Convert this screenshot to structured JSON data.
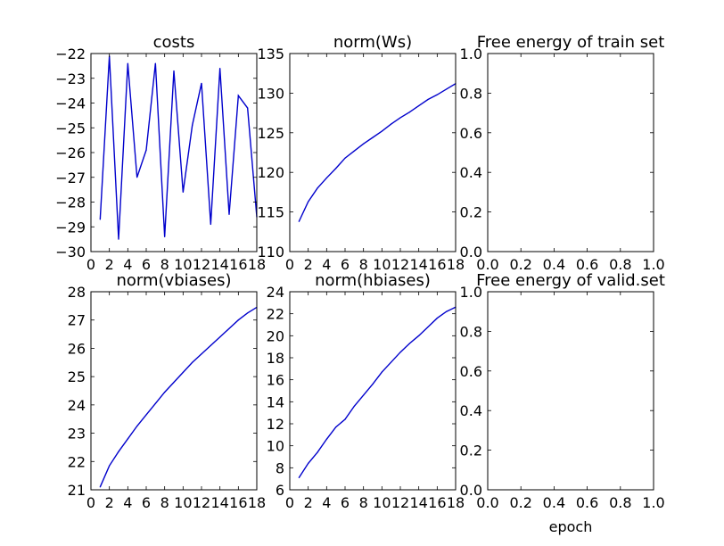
{
  "figure": {
    "xlabel": "epoch"
  },
  "chart_data": [
    {
      "type": "line",
      "title": "costs",
      "xlabel": "",
      "ylabel": "",
      "xlim": [
        0,
        18
      ],
      "ylim": [
        -30,
        -22
      ],
      "xticks": [
        0,
        2,
        4,
        6,
        8,
        10,
        12,
        14,
        16,
        18
      ],
      "xtick_labels": [
        "0",
        "2",
        "4",
        "6",
        "8",
        "10",
        "12",
        "14",
        "16",
        "18"
      ],
      "yticks": [
        -30,
        -29,
        -28,
        -27,
        -26,
        -25,
        -24,
        -23,
        -22
      ],
      "ytick_labels": [
        "−30",
        "−29",
        "−28",
        "−27",
        "−26",
        "−25",
        "−24",
        "−23",
        "−22"
      ],
      "series": [
        {
          "name": "costs",
          "color": "#0000cc",
          "x": [
            1,
            2,
            3,
            4,
            5,
            6,
            7,
            8,
            9,
            10,
            11,
            12,
            13,
            14,
            15,
            16,
            17,
            18
          ],
          "y": [
            -28.7,
            -22.1,
            -29.5,
            -22.4,
            -27.0,
            -25.9,
            -22.4,
            -29.4,
            -22.7,
            -27.6,
            -24.9,
            -23.2,
            -28.9,
            -22.6,
            -28.5,
            -23.7,
            -24.2,
            -28.6
          ]
        }
      ]
    },
    {
      "type": "line",
      "title": "norm(Ws)",
      "xlabel": "",
      "ylabel": "",
      "xlim": [
        0,
        18
      ],
      "ylim": [
        110,
        135
      ],
      "xticks": [
        0,
        2,
        4,
        6,
        8,
        10,
        12,
        14,
        16,
        18
      ],
      "xtick_labels": [
        "0",
        "2",
        "4",
        "6",
        "8",
        "10",
        "12",
        "14",
        "16",
        "18"
      ],
      "yticks": [
        110,
        115,
        120,
        125,
        130,
        135
      ],
      "ytick_labels": [
        "110",
        "115",
        "120",
        "125",
        "130",
        "135"
      ],
      "series": [
        {
          "name": "norm(Ws)",
          "color": "#0000cc",
          "x": [
            1,
            2,
            3,
            4,
            5,
            6,
            7,
            8,
            9,
            10,
            11,
            12,
            13,
            14,
            15,
            16,
            17,
            18
          ],
          "y": [
            113.8,
            116.3,
            118.0,
            119.3,
            120.5,
            121.8,
            122.7,
            123.6,
            124.4,
            125.2,
            126.1,
            126.9,
            127.6,
            128.4,
            129.2,
            129.8,
            130.5,
            131.2
          ]
        }
      ]
    },
    {
      "type": "line",
      "title": "Free energy of train set",
      "xlabel": "",
      "ylabel": "",
      "xlim": [
        0,
        1
      ],
      "ylim": [
        0,
        1
      ],
      "xticks": [
        0,
        0.2,
        0.4,
        0.6,
        0.8,
        1.0
      ],
      "xtick_labels": [
        "0.0",
        "0.2",
        "0.4",
        "0.6",
        "0.8",
        "1.0"
      ],
      "yticks": [
        0,
        0.2,
        0.4,
        0.6,
        0.8,
        1.0
      ],
      "ytick_labels": [
        "0.0",
        "0.2",
        "0.4",
        "0.6",
        "0.8",
        "1.0"
      ],
      "series": []
    },
    {
      "type": "line",
      "title": "norm(vbiases)",
      "xlabel": "",
      "ylabel": "",
      "xlim": [
        0,
        18
      ],
      "ylim": [
        21,
        28
      ],
      "xticks": [
        0,
        2,
        4,
        6,
        8,
        10,
        12,
        14,
        16,
        18
      ],
      "xtick_labels": [
        "0",
        "2",
        "4",
        "6",
        "8",
        "10",
        "12",
        "14",
        "16",
        "18"
      ],
      "yticks": [
        21,
        22,
        23,
        24,
        25,
        26,
        27,
        28
      ],
      "ytick_labels": [
        "21",
        "22",
        "23",
        "24",
        "25",
        "26",
        "27",
        "28"
      ],
      "series": [
        {
          "name": "norm(vbiases)",
          "color": "#0000cc",
          "x": [
            1,
            2,
            3,
            4,
            5,
            6,
            7,
            8,
            9,
            10,
            11,
            12,
            13,
            14,
            15,
            16,
            17,
            18
          ],
          "y": [
            21.1,
            21.85,
            22.35,
            22.8,
            23.25,
            23.65,
            24.05,
            24.45,
            24.8,
            25.15,
            25.5,
            25.8,
            26.1,
            26.4,
            26.7,
            27.0,
            27.25,
            27.45
          ]
        }
      ]
    },
    {
      "type": "line",
      "title": "norm(hbiases)",
      "xlabel": "",
      "ylabel": "",
      "xlim": [
        0,
        18
      ],
      "ylim": [
        6,
        24
      ],
      "xticks": [
        0,
        2,
        4,
        6,
        8,
        10,
        12,
        14,
        16,
        18
      ],
      "xtick_labels": [
        "0",
        "2",
        "4",
        "6",
        "8",
        "10",
        "12",
        "14",
        "16",
        "18"
      ],
      "yticks": [
        6,
        8,
        10,
        12,
        14,
        16,
        18,
        20,
        22,
        24
      ],
      "ytick_labels": [
        "6",
        "8",
        "10",
        "12",
        "14",
        "16",
        "18",
        "20",
        "22",
        "24"
      ],
      "series": [
        {
          "name": "norm(hbiases)",
          "color": "#0000cc",
          "x": [
            1,
            2,
            3,
            4,
            5,
            6,
            7,
            8,
            9,
            10,
            11,
            12,
            13,
            14,
            15,
            16,
            17,
            18
          ],
          "y": [
            7.1,
            8.4,
            9.4,
            10.6,
            11.7,
            12.4,
            13.6,
            14.6,
            15.6,
            16.7,
            17.6,
            18.5,
            19.3,
            20.0,
            20.8,
            21.6,
            22.2,
            22.6
          ]
        }
      ]
    },
    {
      "type": "line",
      "title": "Free energy of valid.set",
      "xlabel": "epoch",
      "ylabel": "",
      "xlim": [
        0,
        1
      ],
      "ylim": [
        0,
        1
      ],
      "xticks": [
        0,
        0.2,
        0.4,
        0.6,
        0.8,
        1.0
      ],
      "xtick_labels": [
        "0.0",
        "0.2",
        "0.4",
        "0.6",
        "0.8",
        "1.0"
      ],
      "yticks": [
        0,
        0.2,
        0.4,
        0.6,
        0.8,
        1.0
      ],
      "ytick_labels": [
        "0.0",
        "0.2",
        "0.4",
        "0.6",
        "0.8",
        "1.0"
      ],
      "series": []
    }
  ]
}
